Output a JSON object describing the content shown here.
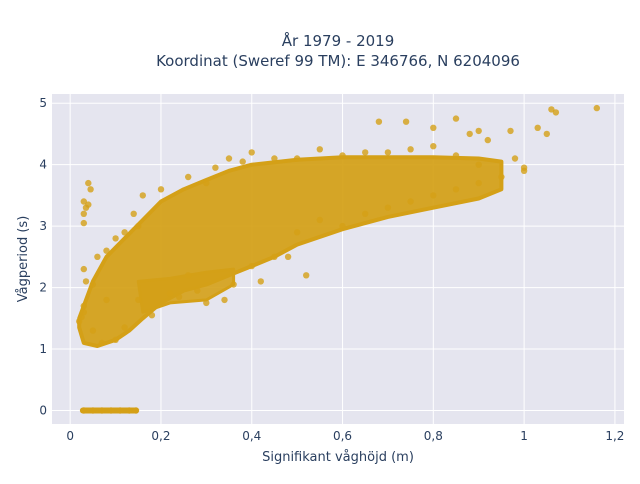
{
  "chart_data": {
    "type": "scatter",
    "title_line1": "År 1979 - 2019",
    "title_line2": "Koordinat (Sweref 99 TM): E 346766, N 6204096",
    "xlabel": "Signifikant våghöjd (m)",
    "ylabel": "Vågperiod (s)",
    "xlim": [
      -0.04,
      1.22
    ],
    "ylim": [
      -0.22,
      5.15
    ],
    "x_ticks": [
      0,
      0.2,
      0.4,
      0.6,
      0.8,
      1,
      1.2
    ],
    "x_tick_labels": [
      "0",
      "0,2",
      "0,4",
      "0,6",
      "0,8",
      "1",
      "1,2"
    ],
    "y_ticks": [
      0,
      1,
      2,
      3,
      4,
      5
    ],
    "y_tick_labels": [
      "0",
      "1",
      "2",
      "3",
      "4",
      "5"
    ],
    "grid": true,
    "marker_color": "#D4A017",
    "plot_background": "#E5E5EF",
    "series": [
      {
        "points": [
          [
            0.03,
            0
          ],
          [
            0.05,
            0
          ],
          [
            0.07,
            0
          ],
          [
            0.09,
            0
          ],
          [
            0.11,
            0
          ],
          [
            0.13,
            0
          ],
          [
            0.145,
            0
          ],
          [
            0.02,
            1.45
          ],
          [
            0.03,
            1.6
          ],
          [
            0.025,
            1.52
          ],
          [
            0.03,
            3.4
          ],
          [
            0.035,
            3.3
          ],
          [
            0.03,
            3.2
          ],
          [
            0.04,
            3.35
          ],
          [
            0.03,
            3.05
          ],
          [
            0.045,
            3.6
          ],
          [
            0.04,
            3.7
          ],
          [
            0.035,
            2.1
          ],
          [
            0.03,
            2.3
          ],
          [
            0.03,
            1.7
          ],
          [
            0.05,
            1.3
          ],
          [
            0.05,
            2.05
          ],
          [
            0.06,
            2.5
          ],
          [
            0.07,
            1.1
          ],
          [
            0.08,
            2.6
          ],
          [
            0.08,
            1.8
          ],
          [
            0.1,
            2.8
          ],
          [
            0.1,
            1.15
          ],
          [
            0.12,
            1.35
          ],
          [
            0.12,
            2.9
          ],
          [
            0.14,
            3.2
          ],
          [
            0.15,
            3.0
          ],
          [
            0.15,
            1.8
          ],
          [
            0.16,
            3.5
          ],
          [
            0.18,
            1.55
          ],
          [
            0.2,
            3.6
          ],
          [
            0.22,
            1.9
          ],
          [
            0.24,
            1.85
          ],
          [
            0.26,
            2.2
          ],
          [
            0.26,
            3.8
          ],
          [
            0.28,
            1.95
          ],
          [
            0.3,
            1.75
          ],
          [
            0.3,
            3.7
          ],
          [
            0.32,
            3.95
          ],
          [
            0.34,
            1.8
          ],
          [
            0.35,
            4.1
          ],
          [
            0.36,
            2.05
          ],
          [
            0.38,
            4.05
          ],
          [
            0.4,
            2.35
          ],
          [
            0.4,
            4.2
          ],
          [
            0.42,
            2.1
          ],
          [
            0.45,
            2.5
          ],
          [
            0.45,
            4.1
          ],
          [
            0.48,
            2.5
          ],
          [
            0.5,
            2.9
          ],
          [
            0.5,
            4.1
          ],
          [
            0.52,
            2.2
          ],
          [
            0.55,
            4.25
          ],
          [
            0.55,
            3.1
          ],
          [
            0.6,
            3.0
          ],
          [
            0.6,
            4.15
          ],
          [
            0.65,
            3.2
          ],
          [
            0.65,
            4.2
          ],
          [
            0.7,
            4.2
          ],
          [
            0.7,
            3.3
          ],
          [
            0.75,
            3.4
          ],
          [
            0.75,
            4.25
          ],
          [
            0.8,
            3.5
          ],
          [
            0.8,
            4.3
          ],
          [
            0.85,
            3.6
          ],
          [
            0.85,
            4.15
          ],
          [
            0.9,
            3.7
          ],
          [
            0.9,
            4.0
          ],
          [
            0.95,
            3.8
          ],
          [
            0.98,
            4.1
          ],
          [
            1.0,
            3.9
          ],
          [
            0.68,
            4.7
          ],
          [
            0.74,
            4.7
          ],
          [
            0.8,
            4.6
          ],
          [
            0.85,
            4.75
          ],
          [
            0.88,
            4.5
          ],
          [
            0.9,
            4.55
          ],
          [
            0.92,
            4.4
          ],
          [
            0.97,
            4.55
          ],
          [
            1.0,
            3.95
          ],
          [
            1.03,
            4.6
          ],
          [
            1.05,
            4.5
          ],
          [
            1.06,
            4.9
          ],
          [
            1.07,
            4.85
          ],
          [
            1.16,
            4.92
          ]
        ]
      }
    ]
  }
}
